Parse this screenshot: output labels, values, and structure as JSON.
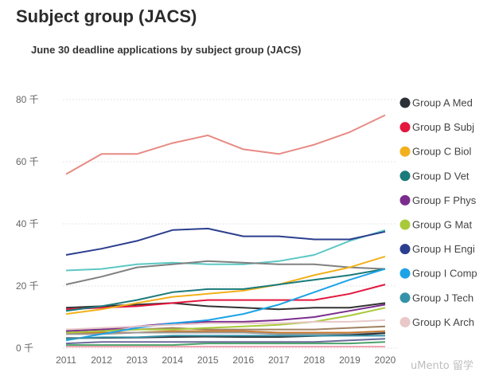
{
  "page": {
    "heading": "Subject group (JACS)"
  },
  "watermark": "uMento 留学",
  "chart_data": {
    "type": "line",
    "title": "June 30 deadline applications by subject group (JACS)",
    "xlabel": "",
    "ylabel": "",
    "x": [
      2011,
      2012,
      2013,
      2014,
      2015,
      2016,
      2017,
      2018,
      2019,
      2020
    ],
    "ylim": [
      0,
      80
    ],
    "yticks": [
      0,
      20,
      40,
      60,
      80
    ],
    "ytick_labels": [
      "0 千",
      "20 千",
      "40 千",
      "60 千",
      "80 千"
    ],
    "grid": true,
    "legend_position": "right",
    "series": [
      {
        "name": "Group A Med",
        "color": "#2b2f36",
        "values": [
          3.2,
          3.3,
          3.4,
          3.6,
          3.7,
          3.6,
          3.6,
          3.9,
          4.2,
          4.8
        ]
      },
      {
        "name": "Group B Subj",
        "color": "#e3173e",
        "values": [
          12.5,
          13.0,
          13.5,
          14.5,
          15.5,
          15.5,
          15.5,
          15.5,
          17.5,
          20.5
        ]
      },
      {
        "name": "Group C Biol",
        "color": "#f2b01c",
        "values": [
          11.0,
          12.5,
          14.5,
          16.5,
          17.5,
          18.5,
          20.5,
          23.5,
          26.0,
          29.5
        ]
      },
      {
        "name": "Group D Vet",
        "color": "#1b7a7a",
        "values": [
          12.0,
          13.5,
          15.5,
          18.0,
          19.0,
          19.0,
          20.5,
          22.0,
          23.5,
          25.5
        ]
      },
      {
        "name": "Group F Phys",
        "color": "#7b2d8e",
        "values": [
          5.5,
          6.0,
          7.0,
          8.0,
          8.5,
          8.5,
          9.0,
          10.0,
          12.0,
          14.0
        ]
      },
      {
        "name": "Group G Mat",
        "color": "#a8c93a",
        "values": [
          5.0,
          5.5,
          6.0,
          6.0,
          6.5,
          7.0,
          7.5,
          8.5,
          10.5,
          13.0
        ]
      },
      {
        "name": "Group H Engi",
        "color": "#2c3e8f",
        "values": [
          30.0,
          32.0,
          34.5,
          38.0,
          38.5,
          36.0,
          36.0,
          35.0,
          35.0,
          37.5
        ]
      },
      {
        "name": "Group I Comp",
        "color": "#1ca3e6",
        "values": [
          2.5,
          4.5,
          6.5,
          8.0,
          9.0,
          11.0,
          14.0,
          18.0,
          22.0,
          25.5
        ]
      },
      {
        "name": "Group J Tech",
        "color": "#3592a8",
        "values": [
          3.0,
          3.5,
          3.5,
          4.0,
          4.0,
          4.0,
          4.0,
          4.0,
          4.0,
          4.0
        ]
      },
      {
        "name": "Group K Arch",
        "color": "#e8c8c8",
        "values": [
          6.0,
          6.5,
          7.0,
          7.5,
          8.0,
          8.0,
          8.0,
          8.5,
          8.5,
          9.0
        ]
      }
    ],
    "extra_series": [
      {
        "color": "#e88a84",
        "values": [
          56,
          62.5,
          62.5,
          66,
          68.5,
          64,
          62.5,
          65.5,
          69.5,
          75
        ]
      },
      {
        "color": "#5cc8c4",
        "values": [
          25,
          25.5,
          27,
          27.5,
          27,
          27,
          28,
          30,
          34.5,
          38
        ]
      },
      {
        "color": "#808080",
        "values": [
          20.5,
          23,
          26,
          27,
          28,
          27.5,
          27,
          27,
          26,
          25.5
        ]
      },
      {
        "color": "#333333",
        "values": [
          13,
          13.5,
          14,
          14.5,
          13.5,
          13,
          12.5,
          13,
          13,
          14.5
        ]
      },
      {
        "color": "#a08060",
        "values": [
          6,
          6,
          6,
          6.5,
          6,
          6,
          6,
          6,
          6.5,
          7
        ]
      },
      {
        "color": "#cc7a2e",
        "values": [
          5,
          5,
          5,
          5.5,
          5.5,
          5.5,
          5,
          5,
          5,
          5.5
        ]
      },
      {
        "color": "#999999",
        "values": [
          4.5,
          4.5,
          5,
          5,
          5,
          5,
          4.5,
          4.5,
          4.5,
          5
        ]
      },
      {
        "color": "#6a6a9a",
        "values": [
          1.5,
          2,
          2,
          2,
          2,
          2,
          2,
          2,
          2.5,
          3
        ]
      },
      {
        "color": "#4aa36a",
        "values": [
          1,
          1,
          1,
          1,
          1.5,
          1.5,
          1.5,
          1.5,
          1.5,
          2
        ]
      },
      {
        "color": "#f0a0b0",
        "values": [
          0.5,
          0.5,
          0.5,
          0.5,
          0.5,
          0.5,
          0.5,
          0.5,
          0.5,
          0.5
        ]
      }
    ]
  }
}
